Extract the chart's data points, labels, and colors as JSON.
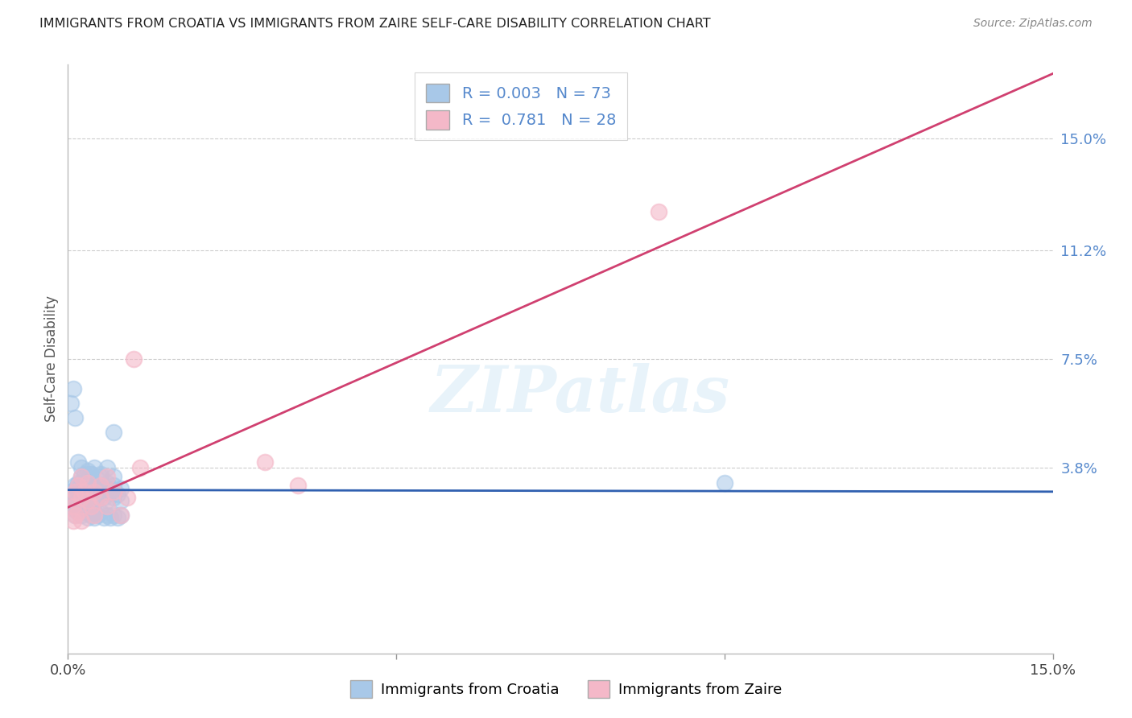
{
  "title": "IMMIGRANTS FROM CROATIA VS IMMIGRANTS FROM ZAIRE SELF-CARE DISABILITY CORRELATION CHART",
  "source": "Source: ZipAtlas.com",
  "ylabel": "Self-Care Disability",
  "xlim": [
    0.0,
    0.15
  ],
  "ylim": [
    -0.025,
    0.175
  ],
  "x_ticks": [
    0.0,
    0.05,
    0.1,
    0.15
  ],
  "x_tick_labels": [
    "0.0%",
    "",
    "",
    "15.0%"
  ],
  "y_ticks_right": [
    0.15,
    0.112,
    0.075,
    0.038
  ],
  "y_tick_labels_right": [
    "15.0%",
    "11.2%",
    "7.5%",
    "3.8%"
  ],
  "croatia_color": "#a8c8e8",
  "zaire_color": "#f4b8c8",
  "croatia_line_color": "#3060b0",
  "zaire_line_color": "#d04070",
  "background_color": "#ffffff",
  "watermark": "ZIPatlas",
  "legend_box_color": "#a8c8e8",
  "legend_box_color2": "#f4b8c8",
  "croatia_x": [
    0.0005,
    0.0008,
    0.001,
    0.001,
    0.0012,
    0.0015,
    0.0015,
    0.002,
    0.002,
    0.002,
    0.002,
    0.0022,
    0.0022,
    0.0025,
    0.0025,
    0.003,
    0.003,
    0.003,
    0.0032,
    0.0035,
    0.0035,
    0.004,
    0.004,
    0.004,
    0.0042,
    0.0045,
    0.005,
    0.005,
    0.005,
    0.0055,
    0.006,
    0.006,
    0.006,
    0.0065,
    0.007,
    0.007,
    0.007,
    0.0075,
    0.008,
    0.008,
    0.0005,
    0.001,
    0.001,
    0.0015,
    0.002,
    0.002,
    0.0025,
    0.003,
    0.003,
    0.0035,
    0.004,
    0.004,
    0.0045,
    0.005,
    0.0055,
    0.006,
    0.0065,
    0.007,
    0.0075,
    0.008,
    0.0005,
    0.001,
    0.0015,
    0.002,
    0.0025,
    0.003,
    0.0035,
    0.004,
    0.005,
    0.006,
    0.007,
    0.1,
    0.0008
  ],
  "croatia_y": [
    0.03,
    0.028,
    0.032,
    0.026,
    0.031,
    0.033,
    0.028,
    0.03,
    0.032,
    0.027,
    0.035,
    0.029,
    0.033,
    0.028,
    0.031,
    0.03,
    0.034,
    0.027,
    0.032,
    0.029,
    0.036,
    0.028,
    0.031,
    0.033,
    0.027,
    0.03,
    0.032,
    0.029,
    0.035,
    0.028,
    0.031,
    0.033,
    0.027,
    0.03,
    0.032,
    0.028,
    0.035,
    0.029,
    0.031,
    0.027,
    0.025,
    0.024,
    0.022,
    0.023,
    0.024,
    0.022,
    0.023,
    0.024,
    0.021,
    0.022,
    0.023,
    0.021,
    0.022,
    0.023,
    0.021,
    0.022,
    0.021,
    0.022,
    0.021,
    0.022,
    0.06,
    0.055,
    0.04,
    0.038,
    0.036,
    0.037,
    0.036,
    0.038,
    0.036,
    0.038,
    0.05,
    0.033,
    0.065
  ],
  "zaire_x": [
    0.0005,
    0.0008,
    0.001,
    0.0012,
    0.0015,
    0.002,
    0.002,
    0.0025,
    0.003,
    0.003,
    0.0035,
    0.004,
    0.004,
    0.005,
    0.005,
    0.006,
    0.006,
    0.007,
    0.008,
    0.009,
    0.01,
    0.011,
    0.03,
    0.035,
    0.09,
    0.0015,
    0.0008,
    0.002
  ],
  "zaire_y": [
    0.028,
    0.025,
    0.03,
    0.022,
    0.032,
    0.035,
    0.028,
    0.03,
    0.033,
    0.027,
    0.025,
    0.03,
    0.022,
    0.028,
    0.032,
    0.035,
    0.025,
    0.03,
    0.022,
    0.028,
    0.075,
    0.038,
    0.04,
    0.032,
    0.125,
    0.023,
    0.02,
    0.02
  ]
}
